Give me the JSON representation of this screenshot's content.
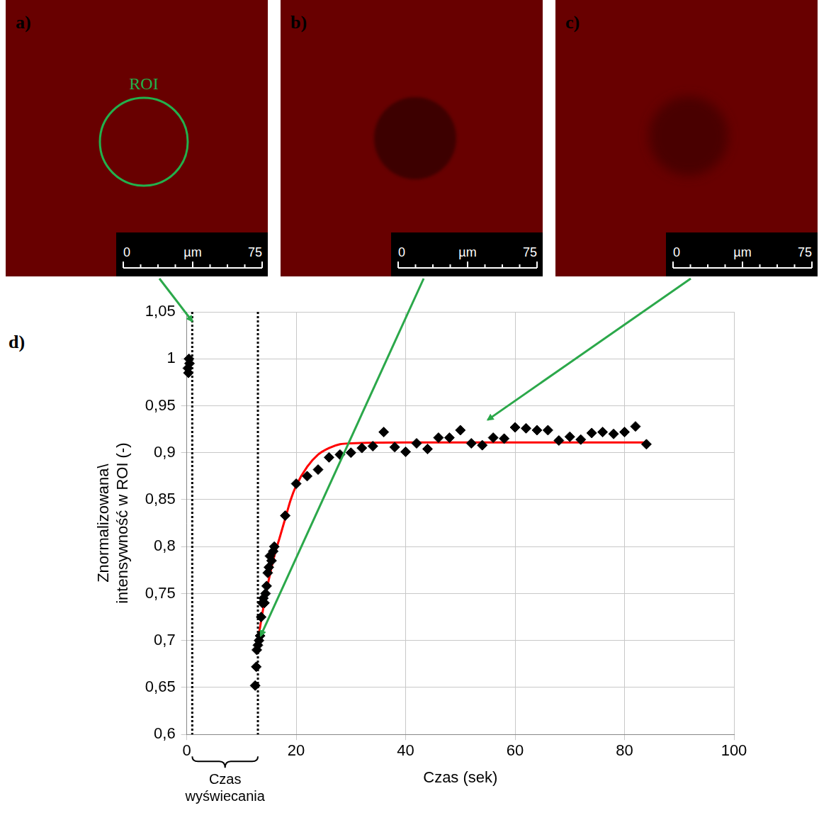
{
  "images": [
    {
      "label": "a)",
      "roi_label": "ROI",
      "scale_bar": {
        "from": 0,
        "to": 75,
        "unit": "µm"
      },
      "points_to": {
        "x": 1,
        "y": 1.04
      }
    },
    {
      "label": "b)",
      "scale_bar": {
        "from": 0,
        "to": 75,
        "unit": "µm"
      },
      "points_to": {
        "x": 13.5,
        "y": 0.705
      }
    },
    {
      "label": "c)",
      "scale_bar": {
        "from": 0,
        "to": 75,
        "unit": "µm"
      },
      "points_to": {
        "x": 55,
        "y": 0.935
      }
    }
  ],
  "chart_data": {
    "type": "scatter",
    "panel_label": "d)",
    "x_label": "Czas (sek)",
    "y_label": "Znormalizowana\\ intensywność w ROI (-)",
    "xlim": [
      0,
      100
    ],
    "xticks": [
      0,
      20,
      40,
      60,
      80,
      100
    ],
    "ylim": [
      0.6,
      1.05
    ],
    "yticks": [
      {
        "value": 0.6,
        "label": "0,6"
      },
      {
        "value": 0.65,
        "label": "0,65"
      },
      {
        "value": 0.7,
        "label": "0,7"
      },
      {
        "value": 0.75,
        "label": "0,75"
      },
      {
        "value": 0.8,
        "label": "0,8"
      },
      {
        "value": 0.85,
        "label": "0,85"
      },
      {
        "value": 0.9,
        "label": "0,9"
      },
      {
        "value": 0.95,
        "label": "0,95"
      },
      1,
      {
        "value": 1.05,
        "label": "1,05"
      }
    ],
    "grid": true,
    "series": [
      {
        "type": "scatter",
        "color": "#000000",
        "marker": "diamond",
        "x": [
          0.2,
          0.3,
          0.4,
          0.5,
          12.5,
          12.7,
          12.8,
          13.0,
          13.2,
          13.4,
          13.6,
          13.8,
          14.0,
          14.2,
          14.4,
          14.6,
          14.8,
          15.0,
          15.2,
          15.5,
          15.8,
          16.0,
          18,
          20,
          22,
          24,
          26,
          28,
          30,
          32,
          34,
          36,
          38,
          40,
          42,
          44,
          46,
          48,
          50,
          52,
          54,
          56,
          58,
          60,
          62,
          64,
          66,
          68,
          70,
          72,
          74,
          76,
          78,
          80,
          82,
          84
        ],
        "values": [
          0.99,
          0.985,
          1.0,
          0.995,
          0.652,
          0.672,
          0.69,
          0.695,
          0.7,
          0.705,
          0.725,
          0.74,
          0.745,
          0.74,
          0.75,
          0.758,
          0.772,
          0.778,
          0.79,
          0.785,
          0.795,
          0.8,
          0.833,
          0.867,
          0.875,
          0.882,
          0.895,
          0.898,
          0.9,
          0.905,
          0.907,
          0.922,
          0.906,
          0.901,
          0.91,
          0.904,
          0.916,
          0.916,
          0.924,
          0.91,
          0.908,
          0.916,
          0.915,
          0.927,
          0.926,
          0.924,
          0.924,
          0.913,
          0.917,
          0.914,
          0.921,
          0.922,
          0.92,
          0.922,
          0.928,
          0.909
        ]
      },
      {
        "type": "line",
        "color": "#ff0000",
        "marker": "none",
        "line_style": "solid",
        "x": [
          13,
          14,
          15,
          16,
          17,
          18,
          19,
          20,
          22,
          24,
          26,
          28,
          30,
          40,
          60,
          84
        ],
        "values": [
          0.7,
          0.735,
          0.765,
          0.79,
          0.81,
          0.83,
          0.85,
          0.865,
          0.885,
          0.898,
          0.905,
          0.909,
          0.91,
          0.911,
          0.911,
          0.911
        ]
      }
    ],
    "annotations": [
      {
        "text": "Czas wyświecania",
        "from": 1,
        "to": 13,
        "line_style": "dotted"
      }
    ]
  }
}
